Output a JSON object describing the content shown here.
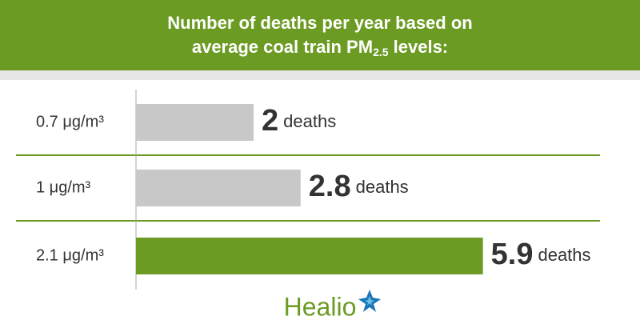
{
  "chart_data": {
    "type": "bar",
    "orientation": "horizontal",
    "title": {
      "text": "Number of deaths per year based on average coal train PM",
      "subscript": "2.5",
      "after": " levels:"
    },
    "categories": [
      "0.7 μg/m³",
      "1 μg/m³",
      "2.1 μg/m³"
    ],
    "values": [
      2,
      2.8,
      5.9
    ],
    "value_unit": "deaths",
    "colors": [
      "#c8c8c8",
      "#c8c8c8",
      "#6b9b22"
    ]
  },
  "logo": "Healio"
}
